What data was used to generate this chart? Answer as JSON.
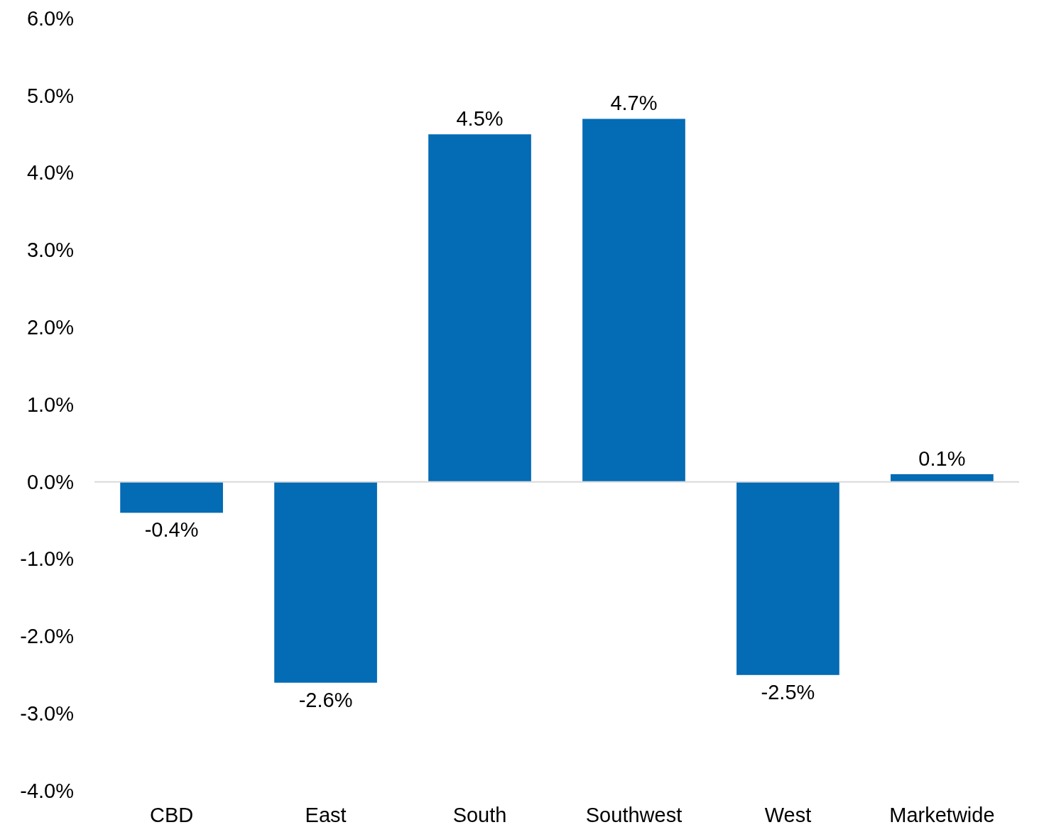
{
  "chart_data": {
    "type": "bar",
    "categories": [
      "CBD",
      "East",
      "South",
      "Southwest",
      "West",
      "Marketwide"
    ],
    "values": [
      -0.4,
      -2.6,
      4.5,
      4.7,
      -2.5,
      0.1
    ],
    "value_labels": [
      "-0.4%",
      "-2.6%",
      "4.5%",
      "4.7%",
      "-2.5%",
      "0.1%"
    ],
    "color": "#046bb5",
    "ylim": [
      -4,
      6
    ],
    "yticks": [
      {
        "value": -4,
        "label": "-4.0%"
      },
      {
        "value": -3,
        "label": "-3.0%"
      },
      {
        "value": -2,
        "label": "-2.0%"
      },
      {
        "value": -1,
        "label": "-1.0%"
      },
      {
        "value": 0,
        "label": "0.0%"
      },
      {
        "value": 1,
        "label": "1.0%"
      },
      {
        "value": 2,
        "label": "2.0%"
      },
      {
        "value": 3,
        "label": "3.0%"
      },
      {
        "value": 4,
        "label": "4.0%"
      },
      {
        "value": 5,
        "label": "5.0%"
      },
      {
        "value": 6,
        "label": "6.0%"
      }
    ]
  }
}
